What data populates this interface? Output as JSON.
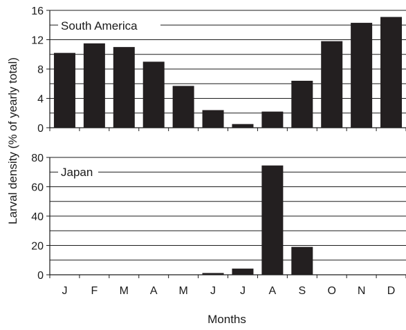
{
  "chart_data": {
    "type": "bar",
    "xlabel": "Months",
    "ylabel": "Larval density (% of yearly total)",
    "categories": [
      "J",
      "F",
      "M",
      "A",
      "M",
      "J",
      "J",
      "A",
      "S",
      "O",
      "N",
      "D"
    ],
    "grid": true,
    "bar_color": "#231f20",
    "panels": [
      {
        "title": "South America",
        "ylim": [
          0,
          16
        ],
        "yticks": [
          "0",
          "4",
          "8",
          "12",
          "16"
        ],
        "values": [
          10.2,
          11.5,
          11.0,
          9.0,
          5.7,
          2.4,
          0.5,
          2.2,
          6.4,
          11.8,
          14.3,
          15.1
        ]
      },
      {
        "title": "Japan",
        "ylim": [
          0,
          80
        ],
        "yticks": [
          "0",
          "20",
          "40",
          "60",
          "80"
        ],
        "values": [
          0,
          0,
          0,
          0,
          0,
          1.2,
          4.2,
          74.5,
          19.0,
          0,
          0,
          0
        ]
      }
    ]
  }
}
